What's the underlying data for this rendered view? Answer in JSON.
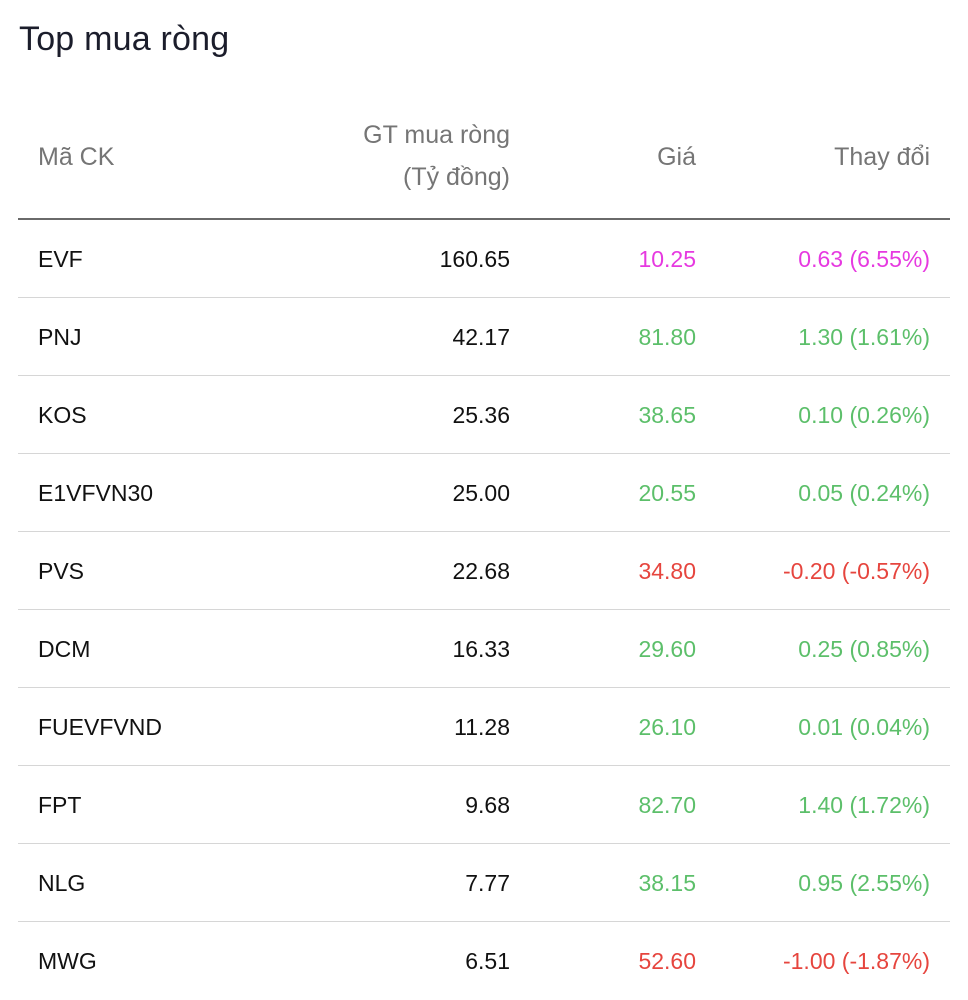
{
  "title": "Top mua ròng",
  "colors": {
    "ceiling": "#e639e0",
    "up": "#5cbf6a",
    "down": "#e6453e"
  },
  "headers": {
    "code": "Mã CK",
    "value_line1": "GT mua ròng",
    "value_line2": "(Tỷ đồng)",
    "price": "Giá",
    "change": "Thay đổi"
  },
  "rows": [
    {
      "code": "EVF",
      "value": "160.65",
      "price": "10.25",
      "change": "0.63 (6.55%)",
      "status": "ceiling"
    },
    {
      "code": "PNJ",
      "value": "42.17",
      "price": "81.80",
      "change": "1.30 (1.61%)",
      "status": "up"
    },
    {
      "code": "KOS",
      "value": "25.36",
      "price": "38.65",
      "change": "0.10 (0.26%)",
      "status": "up"
    },
    {
      "code": "E1VFVN30",
      "value": "25.00",
      "price": "20.55",
      "change": "0.05 (0.24%)",
      "status": "up"
    },
    {
      "code": "PVS",
      "value": "22.68",
      "price": "34.80",
      "change": "-0.20 (-0.57%)",
      "status": "down"
    },
    {
      "code": "DCM",
      "value": "16.33",
      "price": "29.60",
      "change": "0.25 (0.85%)",
      "status": "up"
    },
    {
      "code": "FUEVFVND",
      "value": "11.28",
      "price": "26.10",
      "change": "0.01 (0.04%)",
      "status": "up"
    },
    {
      "code": "FPT",
      "value": "9.68",
      "price": "82.70",
      "change": "1.40 (1.72%)",
      "status": "up"
    },
    {
      "code": "NLG",
      "value": "7.77",
      "price": "38.15",
      "change": "0.95 (2.55%)",
      "status": "up"
    },
    {
      "code": "MWG",
      "value": "6.51",
      "price": "52.60",
      "change": "-1.00 (-1.87%)",
      "status": "down"
    }
  ]
}
